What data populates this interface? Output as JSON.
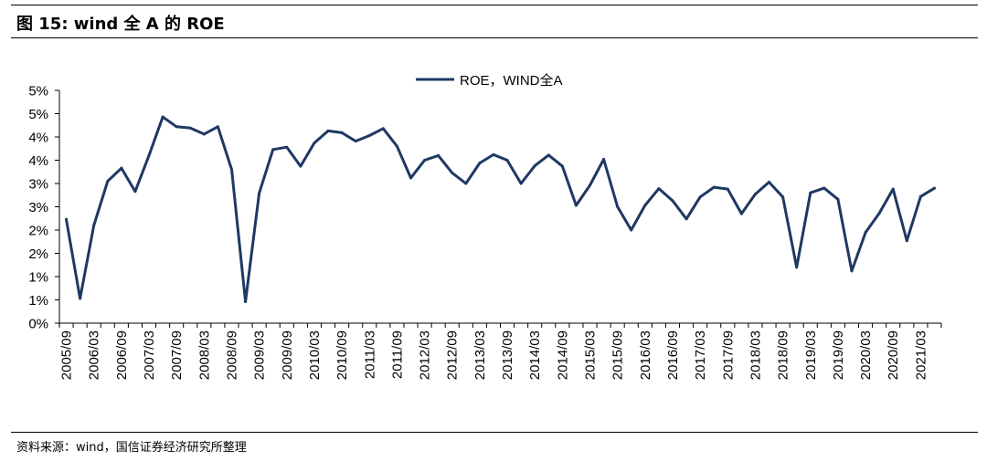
{
  "figure": {
    "title": "图 15:  wind 全 A 的 ROE",
    "source": "资料来源：wind，国信证券经济研究所整理"
  },
  "colors": {
    "series": "#1f3864",
    "axis": "#000000"
  },
  "chart_data": {
    "type": "line",
    "title": "",
    "xlabel": "",
    "ylabel": "",
    "legend_position": "top-center",
    "grid": false,
    "ylim": [
      0,
      5
    ],
    "y_ticks": [
      0,
      0.5,
      1,
      1.5,
      2,
      2.5,
      3,
      3.5,
      4,
      4.5,
      5
    ],
    "y_tick_labels": [
      "0%",
      "1%",
      "1%",
      "2%",
      "2%",
      "3%",
      "3%",
      "4%",
      "4%",
      "5%",
      "5%"
    ],
    "x_tick_labels": [
      "2005/09",
      "2006/03",
      "2006/09",
      "2007/03",
      "2007/09",
      "2008/03",
      "2008/09",
      "2009/03",
      "2009/09",
      "2010/03",
      "2010/09",
      "2011/03",
      "2011/09",
      "2012/03",
      "2012/09",
      "2013/03",
      "2013/09",
      "2014/03",
      "2014/09",
      "2015/03",
      "2015/09",
      "2016/03",
      "2016/09",
      "2017/03",
      "2017/09",
      "2018/03",
      "2018/09",
      "2019/03",
      "2019/09",
      "2020/03",
      "2020/09",
      "2021/03"
    ],
    "x": [
      "2005/09",
      "2005/12",
      "2006/03",
      "2006/06",
      "2006/09",
      "2006/12",
      "2007/03",
      "2007/06",
      "2007/09",
      "2007/12",
      "2008/03",
      "2008/06",
      "2008/09",
      "2008/12",
      "2009/03",
      "2009/06",
      "2009/09",
      "2009/12",
      "2010/03",
      "2010/06",
      "2010/09",
      "2010/12",
      "2011/03",
      "2011/06",
      "2011/09",
      "2011/12",
      "2012/03",
      "2012/06",
      "2012/09",
      "2012/12",
      "2013/03",
      "2013/06",
      "2013/09",
      "2013/12",
      "2014/03",
      "2014/06",
      "2014/09",
      "2014/12",
      "2015/03",
      "2015/06",
      "2015/09",
      "2015/12",
      "2016/03",
      "2016/06",
      "2016/09",
      "2016/12",
      "2017/03",
      "2017/06",
      "2017/09",
      "2017/12",
      "2018/03",
      "2018/06",
      "2018/09",
      "2018/12",
      "2019/03",
      "2019/06",
      "2019/09",
      "2019/12",
      "2020/03",
      "2020/06",
      "2020/09",
      "2020/12",
      "2021/03",
      "2021/06"
    ],
    "series": [
      {
        "name": "ROE，WIND全A",
        "values": [
          2.23,
          0.53,
          2.1,
          3.05,
          3.33,
          2.83,
          3.6,
          4.43,
          4.22,
          4.19,
          4.06,
          4.22,
          3.3,
          0.46,
          2.79,
          3.73,
          3.78,
          3.37,
          3.87,
          4.13,
          4.09,
          3.91,
          4.03,
          4.18,
          3.8,
          3.12,
          3.5,
          3.6,
          3.23,
          3.0,
          3.44,
          3.62,
          3.5,
          3.0,
          3.38,
          3.61,
          3.37,
          2.53,
          2.96,
          3.52,
          2.5,
          2.0,
          2.53,
          2.89,
          2.63,
          2.24,
          2.71,
          2.92,
          2.88,
          2.35,
          2.77,
          3.03,
          2.71,
          1.2,
          2.8,
          2.9,
          2.66,
          1.12,
          1.95,
          2.36,
          2.88,
          1.77,
          2.72,
          2.9
        ]
      }
    ]
  }
}
